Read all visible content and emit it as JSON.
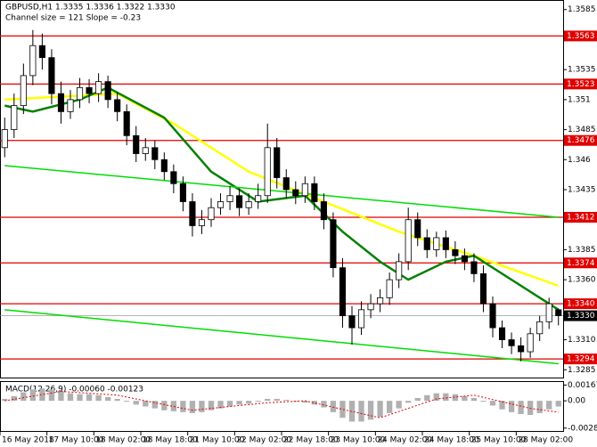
{
  "chart_data": {
    "type": "candlestick",
    "title": "GBPUSD,H1  1.3335 1.3336 1.3322 1.3330",
    "subtitle": "Channel size = 121 Slope = -0.23",
    "open": [
      1.347,
      1.3485,
      1.3505,
      1.353,
      1.3555,
      1.3545,
      1.3515,
      1.35,
      1.351,
      1.352,
      1.3515,
      1.3525,
      1.351,
      1.35,
      1.348,
      1.3465,
      1.347,
      1.346,
      1.345,
      1.344,
      1.3425,
      1.3405,
      1.341,
      1.342,
      1.3425,
      1.343,
      1.342,
      1.3425,
      1.343,
      1.347,
      1.3445,
      1.3435,
      1.343,
      1.344,
      1.3425,
      1.341,
      1.337,
      1.333,
      1.332,
      1.3335,
      1.334,
      1.3345,
      1.336,
      1.3375,
      1.341,
      1.3395,
      1.3385,
      1.3395,
      1.3385,
      1.338,
      1.3375,
      1.3365,
      1.334,
      1.332,
      1.331,
      1.3305,
      1.33,
      1.3315,
      1.3325,
      1.3335
    ],
    "high": [
      1.3495,
      1.3515,
      1.354,
      1.3568,
      1.3565,
      1.3552,
      1.3525,
      1.3518,
      1.3528,
      1.3527,
      1.3532,
      1.353,
      1.3516,
      1.3506,
      1.3488,
      1.3478,
      1.3476,
      1.3466,
      1.3456,
      1.3446,
      1.3432,
      1.3418,
      1.3428,
      1.3432,
      1.3438,
      1.3436,
      1.3432,
      1.344,
      1.349,
      1.3478,
      1.3452,
      1.3442,
      1.3446,
      1.3446,
      1.3432,
      1.3416,
      1.3378,
      1.3338,
      1.3342,
      1.3348,
      1.3352,
      1.3366,
      1.3382,
      1.342,
      1.3416,
      1.3402,
      1.34,
      1.3401,
      1.3392,
      1.3386,
      1.3382,
      1.3372,
      1.3346,
      1.3326,
      1.3316,
      1.3312,
      1.332,
      1.333,
      1.3345,
      1.3336
    ],
    "low": [
      1.3462,
      1.3478,
      1.3498,
      1.3522,
      1.3535,
      1.3506,
      1.349,
      1.3494,
      1.3503,
      1.3507,
      1.3508,
      1.3503,
      1.3492,
      1.3472,
      1.3458,
      1.3459,
      1.3452,
      1.3443,
      1.3432,
      1.3417,
      1.3396,
      1.3398,
      1.3404,
      1.3414,
      1.3418,
      1.3413,
      1.3414,
      1.3419,
      1.3424,
      1.3436,
      1.3428,
      1.3423,
      1.3424,
      1.3418,
      1.3402,
      1.3362,
      1.332,
      1.3306,
      1.3314,
      1.3328,
      1.3333,
      1.3339,
      1.3353,
      1.3368,
      1.3388,
      1.3378,
      1.3379,
      1.3378,
      1.3373,
      1.3368,
      1.3358,
      1.3333,
      1.3312,
      1.3303,
      1.3298,
      1.3292,
      1.3295,
      1.3309,
      1.3319,
      1.3322
    ],
    "close": [
      1.3485,
      1.3505,
      1.353,
      1.3555,
      1.3545,
      1.3515,
      1.35,
      1.351,
      1.352,
      1.3515,
      1.3525,
      1.351,
      1.35,
      1.348,
      1.3465,
      1.347,
      1.346,
      1.345,
      1.344,
      1.3425,
      1.3405,
      1.341,
      1.342,
      1.3425,
      1.343,
      1.342,
      1.3425,
      1.343,
      1.347,
      1.3445,
      1.3435,
      1.343,
      1.344,
      1.3425,
      1.341,
      1.337,
      1.333,
      1.332,
      1.3335,
      1.334,
      1.3345,
      1.336,
      1.3375,
      1.341,
      1.3395,
      1.3385,
      1.3395,
      1.3385,
      1.338,
      1.3375,
      1.3365,
      1.334,
      1.332,
      1.331,
      1.3305,
      1.33,
      1.3315,
      1.3325,
      1.334,
      1.333
    ],
    "lines": [
      {
        "color": "#ffff00",
        "x": [
          0,
          12,
          18,
          26,
          34,
          42,
          50,
          59
        ],
        "values": [
          1.351,
          1.3515,
          1.349,
          1.345,
          1.3425,
          1.34,
          1.338,
          1.3355
        ]
      },
      {
        "color": "#008000",
        "x": [
          0,
          3,
          8,
          11,
          17,
          22,
          27,
          32,
          36,
          40,
          43,
          47,
          50,
          54,
          58,
          59
        ],
        "values": [
          1.3505,
          1.35,
          1.351,
          1.352,
          1.3495,
          1.345,
          1.3425,
          1.343,
          1.34,
          1.3375,
          1.336,
          1.3375,
          1.338,
          1.336,
          1.334,
          1.3335
        ]
      },
      {
        "color": "#00dd00",
        "x": [
          0,
          59
        ],
        "values": [
          1.3455,
          1.3412
        ]
      },
      {
        "color": "#00dd00",
        "x": [
          0,
          59
        ],
        "values": [
          1.3335,
          1.329
        ]
      }
    ],
    "levels": [
      {
        "value": 1.3563,
        "label": "1.3563"
      },
      {
        "value": 1.3523,
        "label": "1.3523"
      },
      {
        "value": 1.3476,
        "label": "1.3476"
      },
      {
        "value": 1.3412,
        "label": "1.3412"
      },
      {
        "value": 1.3374,
        "label": "1.3374"
      },
      {
        "value": 1.334,
        "label": "1.3340"
      },
      {
        "value": 1.3294,
        "label": "1.3294"
      }
    ],
    "level_color": "#e00000",
    "current_price": {
      "value": 1.333,
      "label": "1.3330"
    },
    "ylim": [
      1.328,
      1.359
    ],
    "yticks": [
      1.3585,
      1.3535,
      1.351,
      1.3485,
      1.346,
      1.3435,
      1.3385,
      {
        "value": 1.336,
        "label": "1.3360"
      },
      {
        "value": 1.331,
        "label": "1.3310"
      },
      1.3285
    ],
    "xticks": [
      {
        "value": 0,
        "label": "16 May 2018"
      },
      {
        "value": 5,
        "label": "17 May 10:00"
      },
      {
        "value": 10,
        "label": "18 May 02:00"
      },
      {
        "value": 15,
        "label": "18 May 18:00"
      },
      {
        "value": 20,
        "label": "21 May 10:00"
      },
      {
        "value": 25,
        "label": "22 May 02:00"
      },
      {
        "value": 30,
        "label": "22 May 18:00"
      },
      {
        "value": 35,
        "label": "23 May 10:00"
      },
      {
        "value": 40,
        "label": "24 May 02:00"
      },
      {
        "value": 45,
        "label": "24 May 18:00"
      },
      {
        "value": 50,
        "label": "25 May 10:00"
      },
      {
        "value": 55,
        "label": "28 May 02:00"
      }
    ],
    "macd": {
      "title": "MACD(12,26,9) -0.00060 -0.00123",
      "histogram": [
        0.0002,
        0.0005,
        0.0009,
        0.0012,
        0.0013,
        0.0012,
        0.001,
        0.0008,
        0.0007,
        0.0007,
        0.0006,
        0.0004,
        0.0002,
        -0.0001,
        -0.0004,
        -0.0006,
        -0.0008,
        -0.001,
        -0.0011,
        -0.0012,
        -0.0013,
        -0.0012,
        -0.001,
        -0.0008,
        -0.0006,
        -0.0004,
        -0.0003,
        -0.0001,
        0.0002,
        0.0002,
        0.0001,
        -0.0001,
        -0.0002,
        -0.0004,
        -0.0007,
        -0.0012,
        -0.0018,
        -0.0022,
        -0.0022,
        -0.002,
        -0.0017,
        -0.0013,
        -0.0008,
        -0.0002,
        0.0003,
        0.0006,
        0.0008,
        0.0008,
        0.0007,
        0.0005,
        0.0003,
        -0.0001,
        -0.0005,
        -0.0009,
        -0.0012,
        -0.0014,
        -0.0015,
        -0.0013,
        -0.0009,
        -0.0006
      ],
      "histogram_color": "#b0b0b0",
      "signal": {
        "color": "#e00000",
        "x": [
          0,
          6,
          12,
          20,
          28,
          32,
          40,
          46,
          50,
          56,
          59
        ],
        "values": [
          0.0,
          0.001,
          0.0006,
          -0.001,
          -0.0002,
          0.0,
          -0.0018,
          0.0002,
          0.0006,
          -0.0008,
          -0.0012
        ]
      },
      "ylim": [
        -0.0031,
        0.0019
      ],
      "yticks": [
        0.00167,
        {
          "value": 0,
          "label": "0.00"
        },
        -0.00289
      ]
    }
  }
}
